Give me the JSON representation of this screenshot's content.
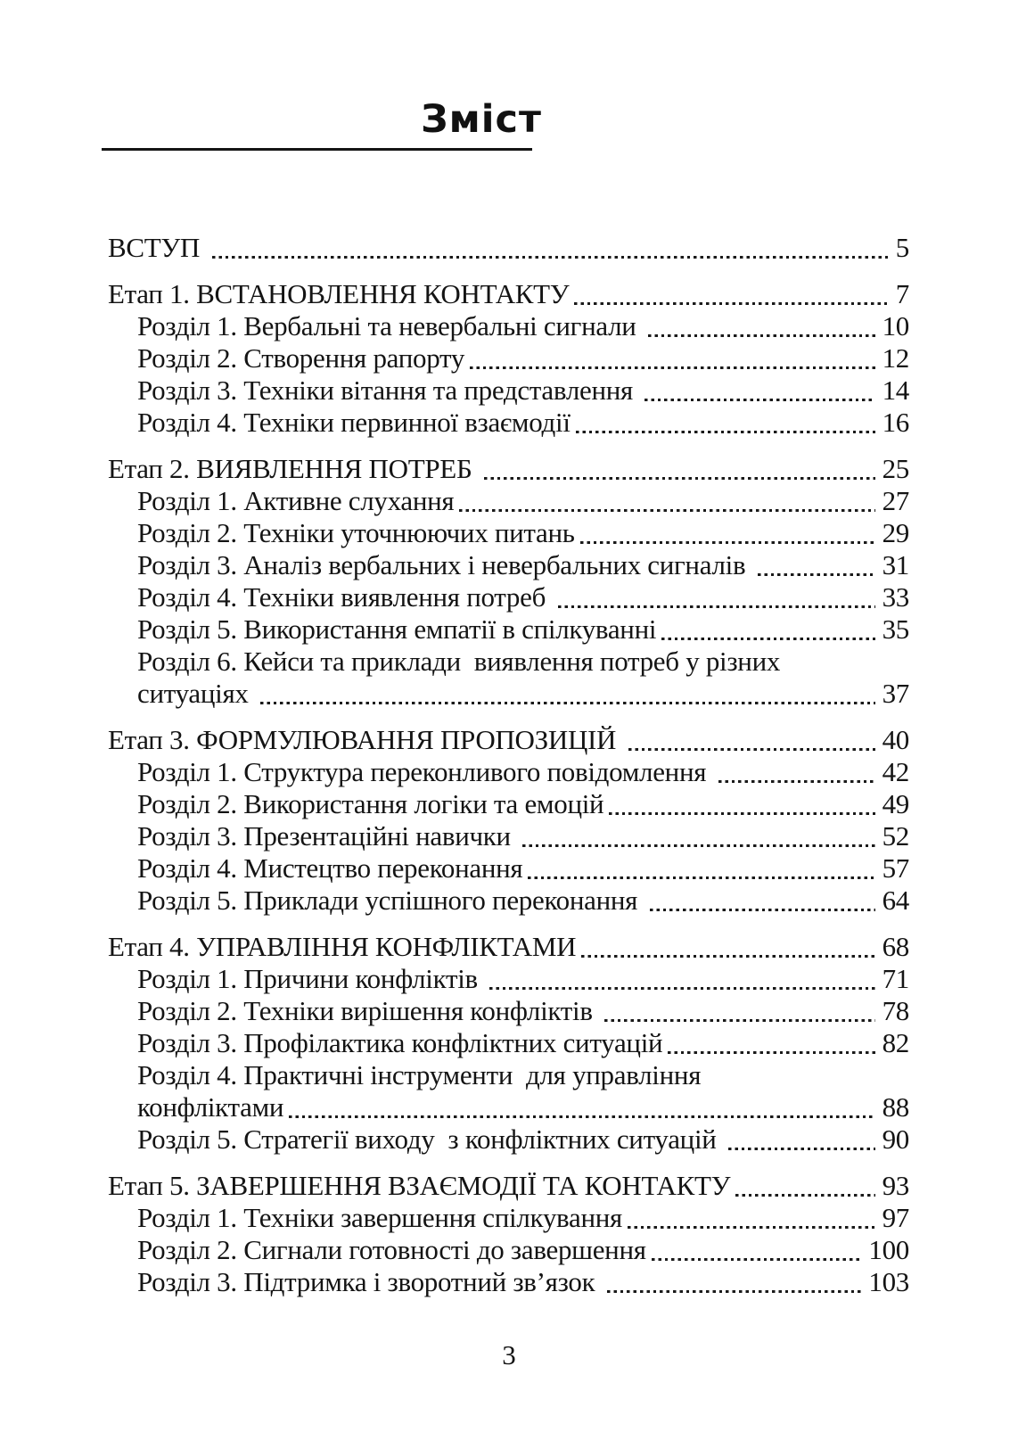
{
  "page": {
    "title": "Зміст",
    "footer_page_number": "3"
  },
  "toc": {
    "rows": [
      {
        "text": "ВСТУП ",
        "page": "5",
        "indent": 0,
        "group_start": false
      },
      {
        "text": "Етап 1. ВСТАНОВЛЕННЯ КОНТАКТУ",
        "page": "7",
        "indent": 0,
        "group_start": true
      },
      {
        "text": "Розділ 1. Вербальні та невербальні сигнали ",
        "page": "10",
        "indent": 1,
        "group_start": false
      },
      {
        "text": "Розділ 2. Створення рапорту",
        "page": "12",
        "indent": 1,
        "group_start": false
      },
      {
        "text": "Розділ 3. Техніки вітання та представлення ",
        "page": "14",
        "indent": 1,
        "group_start": false
      },
      {
        "text": "Розділ 4. Техніки первинної взаємодії",
        "page": "16",
        "indent": 1,
        "group_start": false
      },
      {
        "text": "Етап 2. ВИЯВЛЕННЯ ПОТРЕБ ",
        "page": "25",
        "indent": 0,
        "group_start": true
      },
      {
        "text": "Розділ 1. Активне слухання",
        "page": "27",
        "indent": 1,
        "group_start": false
      },
      {
        "text": "Розділ 2. Техніки уточнюючих питань",
        "page": "29",
        "indent": 1,
        "group_start": false
      },
      {
        "text": "Розділ 3. Аналіз вербальних і невербальних сигналів ",
        "page": "31",
        "indent": 1,
        "group_start": false
      },
      {
        "text": "Розділ 4. Техніки виявлення потреб ",
        "page": "33",
        "indent": 1,
        "group_start": false
      },
      {
        "text": "Розділ 5. Використання емпатії в спілкуванні",
        "page": "35",
        "indent": 1,
        "group_start": false
      },
      {
        "text": "Розділ 6. Кейси та приклади  виявлення потреб у різних",
        "page": null,
        "indent": 1,
        "group_start": false
      },
      {
        "text": "ситуаціях ",
        "page": "37",
        "indent": 1,
        "group_start": false
      },
      {
        "text": "Етап 3. ФОРМУЛЮВАННЯ ПРОПОЗИЦІЙ ",
        "page": "40",
        "indent": 0,
        "group_start": true
      },
      {
        "text": "Розділ 1. Структура переконливого повідомлення ",
        "page": "42",
        "indent": 1,
        "group_start": false
      },
      {
        "text": "Розділ 2. Використання логіки та емоцій",
        "page": "49",
        "indent": 1,
        "group_start": false
      },
      {
        "text": "Розділ 3. Презентаційні навички ",
        "page": "52",
        "indent": 1,
        "group_start": false
      },
      {
        "text": "Розділ 4. Мистецтво переконання",
        "page": "57",
        "indent": 1,
        "group_start": false
      },
      {
        "text": "Розділ 5. Приклади успішного переконання ",
        "page": "64",
        "indent": 1,
        "group_start": false
      },
      {
        "text": "Етап 4. УПРАВЛІННЯ КОНФЛІКТАМИ",
        "page": "68",
        "indent": 0,
        "group_start": true
      },
      {
        "text": "Розділ 1. Причини конфліктів ",
        "page": "71",
        "indent": 1,
        "group_start": false
      },
      {
        "text": "Розділ 2. Техніки вирішення конфліктів ",
        "page": "78",
        "indent": 1,
        "group_start": false
      },
      {
        "text": "Розділ 3. Профілактика конфліктних ситуацій",
        "page": "82",
        "indent": 1,
        "group_start": false
      },
      {
        "text": "Розділ 4. Практичні інструменти  для управління",
        "page": null,
        "indent": 1,
        "group_start": false
      },
      {
        "text": "конфліктами",
        "page": "88",
        "indent": 1,
        "group_start": false
      },
      {
        "text": "Розділ 5. Стратегії виходу  з конфліктних ситуацій ",
        "page": "90",
        "indent": 1,
        "group_start": false
      },
      {
        "text": "Етап 5. ЗАВЕРШЕННЯ ВЗАЄМОДІЇ ТА КОНТАКТУ",
        "page": "93",
        "indent": 0,
        "group_start": true
      },
      {
        "text": "Розділ 1. Техніки завершення спілкування",
        "page": "97",
        "indent": 1,
        "group_start": false
      },
      {
        "text": "Розділ 2. Сигнали готовності до завершення",
        "page": "100",
        "indent": 1,
        "group_start": false
      },
      {
        "text": "Розділ 3. Підтримка і зворотний зв’язок ",
        "page": "103",
        "indent": 1,
        "group_start": false
      }
    ]
  }
}
